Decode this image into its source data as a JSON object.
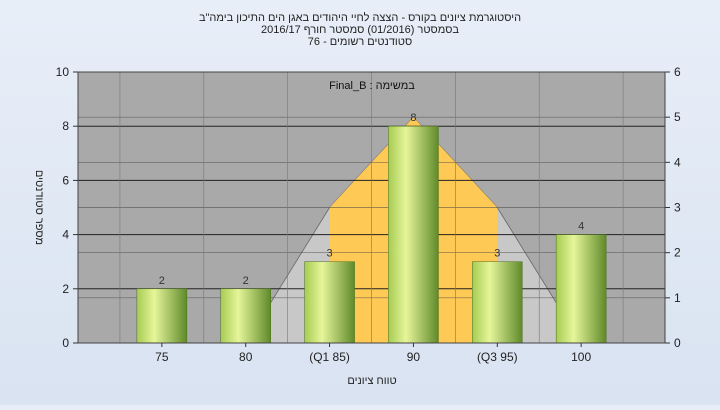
{
  "chart_data": {
    "type": "bar",
    "title_lines": [
      "היסטוגרמת ציונים בקורס - הצצה לחיי היהודים באגן הים התיכון בימה\"ב",
      "בסמסטר  (01/2016)  סמסטר חורף 2016/17",
      "סטודנטים רשומים - 76"
    ],
    "annotation": "Final_B : במשימה",
    "xlabel": "טווח ציונים",
    "ylabel": "מספר סטודנטים",
    "categories": [
      "75",
      "80",
      "(Q1 85)",
      "90",
      "(Q3 95)",
      "100"
    ],
    "values": [
      2,
      2,
      3,
      8,
      3,
      4
    ],
    "data_labels": [
      "2",
      "2",
      "3",
      "8",
      "3",
      "4"
    ],
    "ylim": [
      0,
      10
    ],
    "yticks": [
      "0",
      "2",
      "4",
      "6",
      "8",
      "10"
    ],
    "y2lim": [
      0,
      6
    ],
    "y2ticks": [
      "0",
      "1",
      "2",
      "3",
      "4",
      "5",
      "6"
    ],
    "grid": true,
    "background_areas": [
      {
        "name": "range",
        "color": "#c8c8c8",
        "x": [
          "80",
          "(Q1 85)",
          "90",
          "(Q3 95)",
          "100"
        ],
        "y2": [
          0,
          3,
          5,
          3,
          0
        ]
      },
      {
        "name": "interquartile",
        "color": "#ffc955",
        "x": [
          "(Q1 85)",
          "90",
          "(Q3 95)"
        ],
        "y2": [
          3,
          5,
          3
        ]
      }
    ],
    "colors": {
      "bar_light": "#e6f59a",
      "bar_mid": "#a6cc52",
      "bar_dark": "#5f8a2a",
      "plot_bg": "#a9a9a9"
    }
  }
}
